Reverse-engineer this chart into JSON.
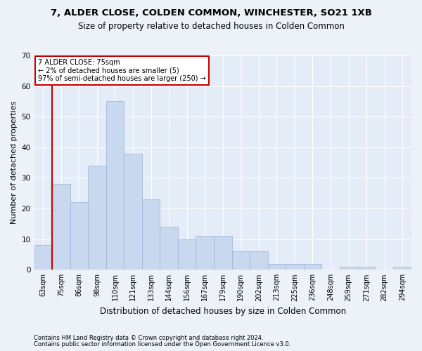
{
  "title_line1": "7, ALDER CLOSE, COLDEN COMMON, WINCHESTER, SO21 1XB",
  "title_line2": "Size of property relative to detached houses in Colden Common",
  "xlabel": "Distribution of detached houses by size in Colden Common",
  "ylabel": "Number of detached properties",
  "categories": [
    "63sqm",
    "75sqm",
    "86sqm",
    "98sqm",
    "110sqm",
    "121sqm",
    "133sqm",
    "144sqm",
    "156sqm",
    "167sqm",
    "179sqm",
    "190sqm",
    "202sqm",
    "213sqm",
    "225sqm",
    "236sqm",
    "248sqm",
    "259sqm",
    "271sqm",
    "282sqm",
    "294sqm"
  ],
  "values": [
    8,
    28,
    22,
    34,
    55,
    38,
    23,
    14,
    10,
    11,
    11,
    6,
    6,
    2,
    2,
    2,
    0,
    1,
    1,
    0,
    1
  ],
  "bar_color": "#c8d8ee",
  "bar_edge_color": "#9ab4d4",
  "highlight_index": 1,
  "highlight_color": "#cc0000",
  "ylim": [
    0,
    70
  ],
  "yticks": [
    0,
    10,
    20,
    30,
    40,
    50,
    60,
    70
  ],
  "annotation_title": "7 ALDER CLOSE: 75sqm",
  "annotation_line2": "← 2% of detached houses are smaller (5)",
  "annotation_line3": "97% of semi-detached houses are larger (250) →",
  "annotation_box_color": "#ffffff",
  "annotation_border_color": "#cc0000",
  "footer_line1": "Contains HM Land Registry data © Crown copyright and database right 2024.",
  "footer_line2": "Contains public sector information licensed under the Open Government Licence v3.0.",
  "bg_color": "#edf2f9",
  "plot_bg_color": "#e4ecf7"
}
